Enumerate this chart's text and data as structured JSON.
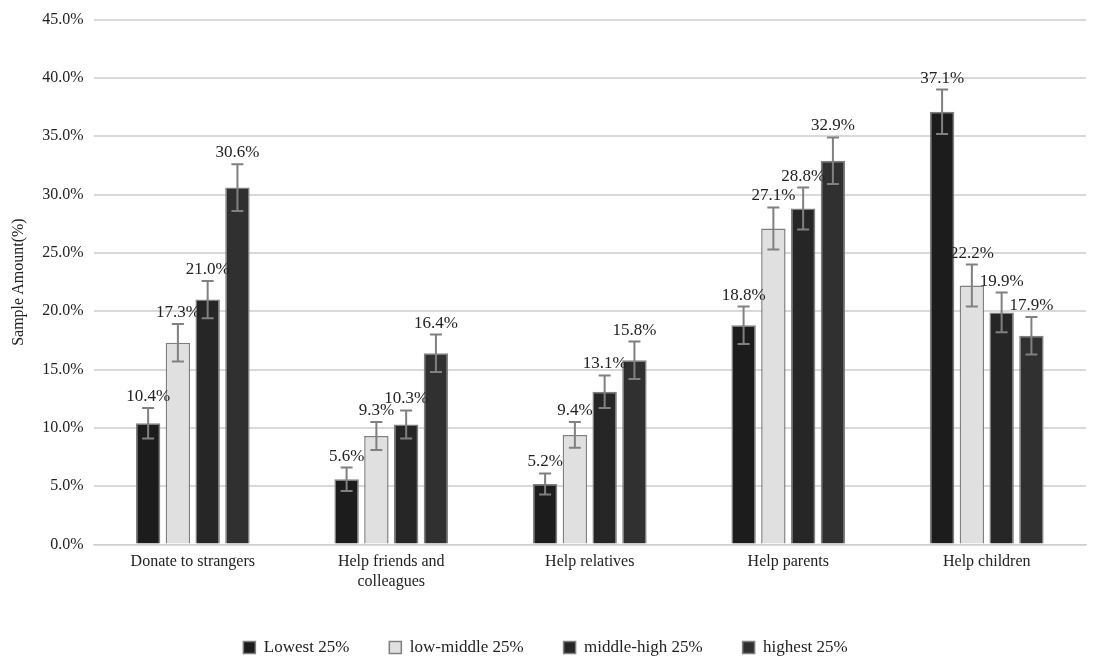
{
  "chart_data": {
    "type": "bar",
    "ylabel": "Sample Amount(%)",
    "categories": [
      "Donate to strangers",
      "Help friends and colleagues",
      "Help relatives",
      "Help parents",
      "Help children"
    ],
    "series": [
      {
        "name": "Lowest 25%",
        "color": "#1c1c1c",
        "values": [
          10.4,
          5.6,
          5.2,
          18.8,
          37.1
        ],
        "errors": [
          1.3,
          1.0,
          0.9,
          1.6,
          1.9
        ],
        "value_labels": [
          "10.4%",
          "5.6%",
          "5.2%",
          "18.8%",
          "37.1%"
        ]
      },
      {
        "name": "low-middle 25%",
        "color": "#e0e0e0",
        "values": [
          17.3,
          9.3,
          9.4,
          27.1,
          22.2
        ],
        "errors": [
          1.6,
          1.2,
          1.1,
          1.8,
          1.8
        ],
        "value_labels": [
          "17.3%",
          "9.3%",
          "9.4%",
          "27.1%",
          "22.2%"
        ]
      },
      {
        "name": "middle-high 25%",
        "color": "#262626",
        "values": [
          21.0,
          10.3,
          13.1,
          28.8,
          19.9
        ],
        "errors": [
          1.6,
          1.2,
          1.4,
          1.8,
          1.7
        ],
        "value_labels": [
          "21.0%",
          "10.3%",
          "13.1%",
          "28.8%",
          "19.9%"
        ]
      },
      {
        "name": "highest 25%",
        "color": "#303030",
        "values": [
          30.6,
          16.4,
          15.8,
          32.9,
          17.9
        ],
        "errors": [
          2.0,
          1.6,
          1.6,
          2.0,
          1.6
        ],
        "value_labels": [
          "30.6%",
          "16.4%",
          "15.8%",
          "32.9%",
          "17.9%"
        ]
      }
    ],
    "ylim": [
      0,
      45
    ],
    "yticks": [
      {
        "value": 0,
        "label": "0.0%"
      },
      {
        "value": 5,
        "label": "5.0%"
      },
      {
        "value": 10,
        "label": "10.0%"
      },
      {
        "value": 15,
        "label": "15.0%"
      },
      {
        "value": 20,
        "label": "20.0%"
      },
      {
        "value": 25,
        "label": "25.0%"
      },
      {
        "value": 30,
        "label": "30.0%"
      },
      {
        "value": 35,
        "label": "35.0%"
      },
      {
        "value": 40,
        "label": "40.0%"
      },
      {
        "value": 45,
        "label": "45.0%"
      }
    ],
    "grid": "y",
    "legend": "bottom"
  }
}
